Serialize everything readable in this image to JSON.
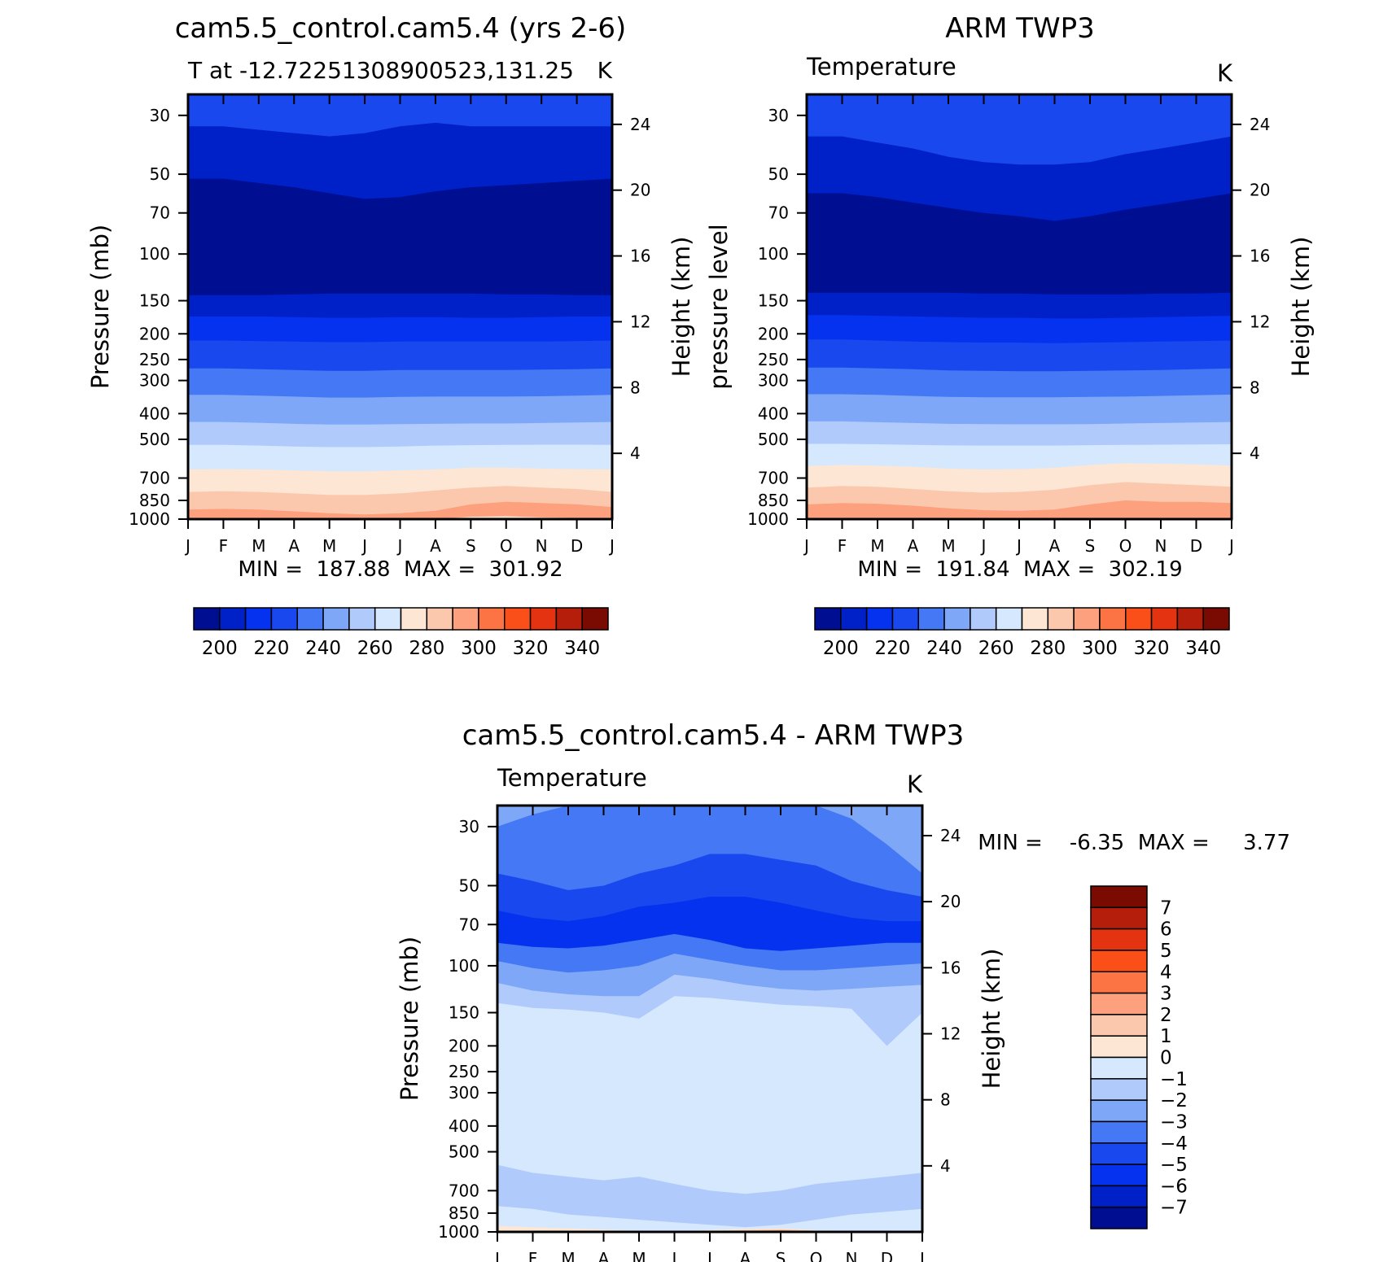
{
  "chart_data": [
    {
      "type": "heatmap",
      "id": "model",
      "title": "cam5.5_control.cam5.4 (yrs 2-6)",
      "left_string": "T at -12.72251308900523,131.25",
      "right_string": "K",
      "xlabel": "",
      "ylabel": "Pressure (mb)",
      "ylabel_right": "Height (km)",
      "x_ticks": [
        "J",
        "F",
        "M",
        "A",
        "M",
        "J",
        "J",
        "A",
        "S",
        "O",
        "N",
        "D",
        "J"
      ],
      "y_ticks": [
        30,
        50,
        70,
        100,
        150,
        200,
        250,
        300,
        400,
        500,
        700,
        850,
        1000
      ],
      "height_ticks": [
        4,
        8,
        12,
        16,
        20,
        24
      ],
      "ylim": [
        1000,
        25
      ],
      "minmax_text": "MIN =  187.88  MAX =  301.92",
      "stats": {
        "min": 187.88,
        "max": 301.92
      },
      "colorbar": {
        "orientation": "horizontal",
        "levels": [
          195,
          200,
          210,
          220,
          230,
          240,
          250,
          260,
          270,
          280,
          290,
          300,
          310,
          320,
          330,
          340,
          345
        ],
        "labels": [
          "200",
          "220",
          "240",
          "260",
          "280",
          "300",
          "320",
          "340"
        ]
      },
      "contour_boundaries_p": [
        {
          "c": "#1a48ef",
          "p": [
            33,
            33,
            34,
            35,
            36,
            35,
            33,
            32,
            33,
            33,
            33,
            33,
            33
          ]
        },
        {
          "c": "#0020c8",
          "p": [
            52,
            52,
            54,
            56,
            59,
            62,
            61,
            58,
            56,
            55,
            54,
            53,
            52
          ]
        },
        {
          "c": "#000e91",
          "p": [
            143,
            143,
            143,
            142,
            141,
            141,
            141,
            141,
            141,
            142,
            142,
            143,
            143
          ]
        },
        {
          "c": "#0020c8",
          "p": [
            172,
            172,
            172,
            173,
            174,
            174,
            173,
            173,
            174,
            174,
            173,
            172,
            172
          ]
        },
        {
          "c": "#0532ee",
          "p": [
            212,
            212,
            213,
            214,
            215,
            215,
            214,
            214,
            214,
            214,
            214,
            213,
            212
          ]
        },
        {
          "c": "#1a48ef",
          "p": [
            270,
            270,
            272,
            274,
            276,
            276,
            274,
            274,
            274,
            274,
            273,
            272,
            270
          ]
        },
        {
          "c": "#4478f4",
          "p": [
            340,
            340,
            342,
            345,
            348,
            348,
            346,
            345,
            345,
            345,
            344,
            342,
            340
          ]
        },
        {
          "c": "#7fa7f8",
          "p": [
            430,
            430,
            433,
            437,
            440,
            440,
            438,
            437,
            436,
            436,
            434,
            432,
            430
          ]
        },
        {
          "c": "#b0cbfb",
          "p": [
            525,
            525,
            528,
            532,
            535,
            535,
            532,
            528,
            526,
            525,
            524,
            524,
            525
          ]
        },
        {
          "c": "#d6e8fe",
          "p": [
            650,
            648,
            650,
            655,
            660,
            660,
            655,
            650,
            640,
            640,
            645,
            648,
            650
          ]
        },
        {
          "c": "#fde6d4",
          "p": [
            790,
            785,
            790,
            800,
            810,
            810,
            800,
            780,
            760,
            750,
            760,
            770,
            790
          ]
        },
        {
          "c": "#fcc8ad",
          "p": [
            920,
            915,
            920,
            935,
            950,
            960,
            950,
            930,
            880,
            860,
            870,
            880,
            900
          ]
        },
        {
          "c": "#fca07d",
          "p": [
            1000,
            1000,
            1000,
            1000,
            1000,
            1000,
            1000,
            1000,
            980,
            975,
            985,
            990,
            1000
          ]
        },
        {
          "c": "#fde6d4",
          "p": [
            1000,
            1000,
            1000,
            1000,
            1000,
            1000,
            1000,
            1000,
            1000,
            1000,
            1000,
            1000,
            1000
          ]
        }
      ]
    },
    {
      "type": "heatmap",
      "id": "obs",
      "title": "ARM TWP3",
      "left_string": "Temperature",
      "right_string": "K",
      "xlabel": "",
      "ylabel": "pressure level",
      "ylabel_right": "Height (km)",
      "x_ticks": [
        "J",
        "F",
        "M",
        "A",
        "M",
        "J",
        "J",
        "A",
        "S",
        "O",
        "N",
        "D",
        "J"
      ],
      "y_ticks": [
        30,
        50,
        70,
        100,
        150,
        200,
        250,
        300,
        400,
        500,
        700,
        850,
        1000
      ],
      "height_ticks": [
        4,
        8,
        12,
        16,
        20,
        24
      ],
      "ylim": [
        1000,
        25
      ],
      "minmax_text": "MIN =  191.84  MAX =  302.19",
      "stats": {
        "min": 191.84,
        "max": 302.19
      },
      "colorbar": {
        "orientation": "horizontal",
        "levels": [
          195,
          200,
          210,
          220,
          230,
          240,
          250,
          260,
          270,
          280,
          290,
          300,
          310,
          320,
          330,
          340,
          345
        ],
        "labels": [
          "200",
          "220",
          "240",
          "260",
          "280",
          "300",
          "320",
          "340"
        ]
      },
      "contour_boundaries_p": [
        {
          "c": "#1a48ef",
          "p": [
            36,
            36,
            38,
            40,
            43,
            45,
            46,
            46,
            45,
            42,
            40,
            38,
            36
          ]
        },
        {
          "c": "#0020c8",
          "p": [
            59,
            59,
            61,
            64,
            67,
            70,
            72,
            75,
            72,
            68,
            65,
            62,
            59
          ]
        },
        {
          "c": "#000e91",
          "p": [
            140,
            140,
            140,
            140,
            140,
            141,
            141,
            142,
            142,
            142,
            141,
            141,
            140
          ]
        },
        {
          "c": "#0020c8",
          "p": [
            170,
            170,
            171,
            172,
            173,
            174,
            174,
            175,
            175,
            174,
            173,
            172,
            171
          ]
        },
        {
          "c": "#0532ee",
          "p": [
            210,
            210,
            212,
            214,
            215,
            216,
            216,
            217,
            216,
            215,
            214,
            213,
            212
          ]
        },
        {
          "c": "#1a48ef",
          "p": [
            268,
            268,
            270,
            272,
            275,
            276,
            277,
            277,
            276,
            275,
            274,
            272,
            270
          ]
        },
        {
          "c": "#4478f4",
          "p": [
            338,
            338,
            340,
            343,
            346,
            347,
            347,
            347,
            346,
            345,
            343,
            341,
            339
          ]
        },
        {
          "c": "#7fa7f8",
          "p": [
            428,
            428,
            431,
            434,
            437,
            438,
            439,
            439,
            438,
            436,
            434,
            432,
            430
          ]
        },
        {
          "c": "#b0cbfb",
          "p": [
            520,
            520,
            522,
            525,
            527,
            528,
            528,
            528,
            526,
            525,
            524,
            523,
            522
          ]
        },
        {
          "c": "#d6e8fe",
          "p": [
            630,
            625,
            628,
            635,
            645,
            650,
            648,
            640,
            625,
            615,
            618,
            622,
            628
          ]
        },
        {
          "c": "#fde6d4",
          "p": [
            760,
            750,
            755,
            770,
            785,
            795,
            790,
            775,
            745,
            725,
            735,
            745,
            755
          ]
        },
        {
          "c": "#fcc8ad",
          "p": [
            880,
            870,
            875,
            890,
            910,
            925,
            930,
            920,
            880,
            850,
            860,
            860,
            870
          ]
        },
        {
          "c": "#fca07d",
          "p": [
            1000,
            1000,
            1000,
            1000,
            1000,
            1000,
            1000,
            1000,
            1000,
            990,
            985,
            988,
            1000
          ]
        }
      ]
    },
    {
      "type": "heatmap",
      "id": "diff",
      "title": "cam5.5_control.cam5.4 - ARM TWP3",
      "left_string": "Temperature",
      "right_string": "K",
      "xlabel": "",
      "ylabel": "Pressure (mb)",
      "ylabel_right": "Height (km)",
      "x_ticks": [
        "J",
        "F",
        "M",
        "A",
        "M",
        "J",
        "J",
        "A",
        "S",
        "O",
        "N",
        "D",
        "J"
      ],
      "y_ticks": [
        30,
        50,
        70,
        100,
        150,
        200,
        250,
        300,
        400,
        500,
        700,
        850,
        1000
      ],
      "height_ticks": [
        4,
        8,
        12,
        16,
        20,
        24
      ],
      "ylim": [
        1000,
        25
      ],
      "minmax_text": "MIN =    -6.35  MAX =     3.77",
      "stats": {
        "min": -6.35,
        "max": 3.77
      },
      "colorbar": {
        "orientation": "vertical",
        "levels": [
          -8,
          -7,
          -6,
          -5,
          -4,
          -3,
          -2,
          -1,
          0,
          1,
          2,
          3,
          4,
          5,
          6,
          7,
          8
        ],
        "labels": [
          "7",
          "6",
          "5",
          "4",
          "3",
          "2",
          "1",
          "0",
          "−1",
          "−2",
          "−3",
          "−4",
          "−5",
          "−6",
          "−7"
        ]
      },
      "contour_boundaries_p": [
        {
          "c": "#7fa7f8",
          "p": [
            30,
            27,
            25,
            25,
            25,
            25,
            25,
            25,
            25,
            25,
            28,
            35,
            45
          ]
        },
        {
          "c": "#4478f4",
          "p": [
            45,
            48,
            52,
            50,
            45,
            42,
            38,
            38,
            40,
            42,
            48,
            52,
            55
          ]
        },
        {
          "c": "#1a48ef",
          "p": [
            62,
            66,
            68,
            65,
            60,
            58,
            55,
            55,
            58,
            62,
            66,
            68,
            68
          ]
        },
        {
          "c": "#0532ee",
          "p": [
            82,
            85,
            86,
            84,
            80,
            76,
            80,
            86,
            88,
            86,
            84,
            82,
            82
          ]
        },
        {
          "c": "#4478f4",
          "p": [
            96,
            102,
            106,
            104,
            100,
            90,
            95,
            100,
            104,
            104,
            102,
            100,
            98
          ]
        },
        {
          "c": "#7fa7f8",
          "p": [
            116,
            124,
            128,
            130,
            130,
            108,
            112,
            118,
            122,
            124,
            122,
            120,
            118
          ]
        },
        {
          "c": "#b0cbfb",
          "p": [
            138,
            144,
            146,
            150,
            158,
            130,
            132,
            136,
            140,
            142,
            145,
            200,
            150
          ]
        },
        {
          "c": "#d6e8fe",
          "p": [
            560,
            600,
            620,
            640,
            620,
            660,
            700,
            720,
            700,
            660,
            640,
            620,
            600
          ]
        },
        {
          "c": "#b0cbfb",
          "p": [
            800,
            820,
            860,
            880,
            900,
            920,
            940,
            960,
            940,
            900,
            860,
            840,
            820
          ]
        },
        {
          "c": "#d6e8fe",
          "p": [
            950,
            960,
            970,
            980,
            990,
            992,
            985,
            975,
            970,
            985,
            995,
            1000,
            1000
          ]
        },
        {
          "c": "#fde6d4",
          "p": [
            1000,
            1000,
            1000,
            1000,
            1000,
            1000,
            992,
            984,
            978,
            990,
            1000,
            1000,
            1000
          ]
        },
        {
          "c": "#fcc8ad",
          "p": [
            1000,
            1000,
            1000,
            1000,
            1000,
            1000,
            1000,
            992,
            986,
            995,
            1000,
            1000,
            1000
          ]
        },
        {
          "c": "#fca07d",
          "p": [
            1000,
            1000,
            1000,
            1000,
            1000,
            1000,
            1000,
            1000,
            993,
            1000,
            1000,
            1000,
            1000
          ]
        }
      ]
    }
  ],
  "colors": {
    "temperature_palette": [
      "#000e91",
      "#0020c8",
      "#0532ee",
      "#1a48ef",
      "#4478f4",
      "#7fa7f8",
      "#b0cbfb",
      "#d6e8fe",
      "#fde6d4",
      "#fcc8ad",
      "#fca07d",
      "#fc7444",
      "#fb4f1a",
      "#e33311",
      "#b41e0b",
      "#7a0b03"
    ],
    "difference_palette": [
      "#7a0b03",
      "#b41e0b",
      "#e33311",
      "#fb4f1a",
      "#fc7444",
      "#fca07d",
      "#fcc8ad",
      "#fde6d4",
      "#d6e8fe",
      "#b0cbfb",
      "#7fa7f8",
      "#4478f4",
      "#1a48ef",
      "#0532ee",
      "#0020c8",
      "#000e91"
    ]
  }
}
